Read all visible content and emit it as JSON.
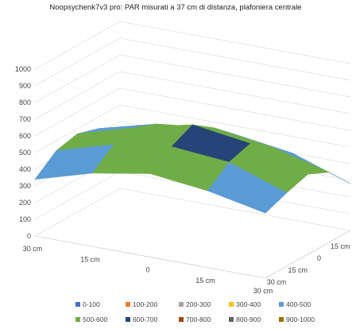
{
  "chart_data": {
    "type": "surface",
    "title": "Noopsychenk7v3 pro: PAR misurati a 37 cm di distanza, plafoniera centrale",
    "z_ticks": [
      "0",
      "100",
      "200",
      "300",
      "400",
      "500",
      "600",
      "700",
      "800",
      "900",
      "1000"
    ],
    "zlim": [
      0,
      1000
    ],
    "front_axis_ticks": [
      "30 cm",
      "15 cm",
      "0",
      "15 cm",
      "30 cm"
    ],
    "side_axis_ticks": [
      "30 cm",
      "15 cm",
      "0",
      "15 cm",
      "30 cm"
    ],
    "grid": true,
    "legend_position": "bottom",
    "bands": [
      {
        "label": "0-100",
        "color": "#4472c4"
      },
      {
        "label": "100-200",
        "color": "#ed7d31"
      },
      {
        "label": "200-300",
        "color": "#a5a5a5"
      },
      {
        "label": "300-400",
        "color": "#ffc000"
      },
      {
        "label": "400-500",
        "color": "#5b9bd5"
      },
      {
        "label": "500-600",
        "color": "#70ad47"
      },
      {
        "label": "600-700",
        "color": "#264478"
      },
      {
        "label": "700-800",
        "color": "#9e480e"
      },
      {
        "label": "800-900",
        "color": "#636363"
      },
      {
        "label": "900-1000",
        "color": "#997300"
      }
    ],
    "grid_positions": [
      "30 cm",
      "15 cm",
      "0",
      "15 cm",
      "30 cm"
    ],
    "values": [
      [
        330,
        420,
        450,
        400,
        280
      ],
      [
        430,
        520,
        560,
        510,
        420
      ],
      [
        470,
        570,
        650,
        600,
        480
      ],
      [
        440,
        540,
        590,
        560,
        440
      ],
      [
        340,
        440,
        500,
        460,
        390
      ]
    ]
  }
}
